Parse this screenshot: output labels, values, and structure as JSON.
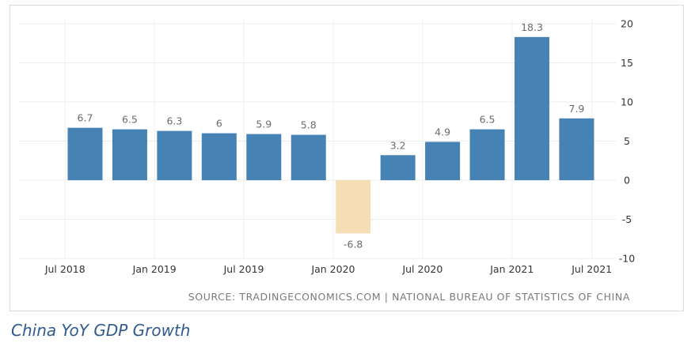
{
  "chart_data": {
    "type": "bar",
    "title": "China YoY GDP Growth",
    "source": "SOURCE: TRADINGECONOMICS.COM | NATIONAL BUREAU OF STATISTICS OF CHINA",
    "x": [
      "Q3 2018",
      "Q4 2018",
      "Q1 2019",
      "Q2 2019",
      "Q3 2019",
      "Q4 2019",
      "Q1 2020",
      "Q2 2020",
      "Q3 2020",
      "Q4 2020",
      "Q1 2021",
      "Q2 2021"
    ],
    "values": [
      6.7,
      6.5,
      6.3,
      6,
      5.9,
      5.8,
      -6.8,
      3.2,
      4.9,
      6.5,
      18.3,
      7.9
    ],
    "data_labels": [
      "6.7",
      "6.5",
      "6.3",
      "6",
      "5.9",
      "5.8",
      "-6.8",
      "3.2",
      "4.9",
      "6.5",
      "18.3",
      "7.9"
    ],
    "x_tick_labels": [
      "Jul 2018",
      "Jan 2019",
      "Jul 2019",
      "Jan 2020",
      "Jul 2020",
      "Jan 2021",
      "Jul 2021"
    ],
    "y_ticks": [
      20,
      15,
      10,
      5,
      0,
      -5,
      -10
    ],
    "ylim": [
      -10,
      20
    ],
    "grid": true,
    "positive_color": "#4682b4",
    "negative_color": "#f5deb3",
    "label_color": "#6b6b6b"
  }
}
